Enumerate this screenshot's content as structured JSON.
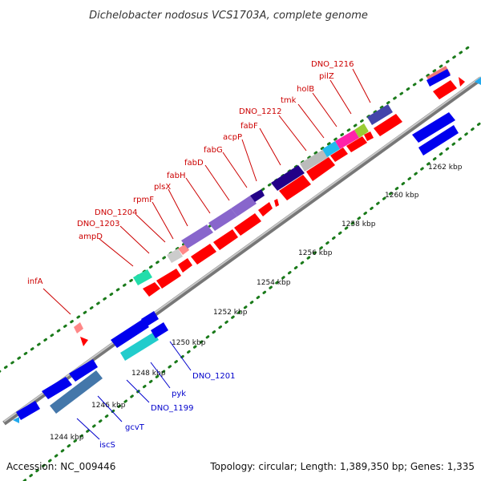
{
  "header": {
    "title": "Dichelobacter nodosus VCS1703A, complete genome"
  },
  "footer": {
    "accession": "Accession: NC_009446",
    "topology": "Topology: circular; Length: 1,389,350 bp; Genes: 1,335"
  },
  "colors": {
    "backbone": "#8c8c8c",
    "forward_label": "#cc0000",
    "reverse_label": "#0000cc",
    "cds_forward": "#ff0000",
    "cds_reverse": "#0000ee",
    "ruler_dots": "#1a7a1a"
  },
  "scale_labels": [
    {
      "text": "1244 kbp"
    },
    {
      "text": "1246 kbp"
    },
    {
      "text": "1248 kbp"
    },
    {
      "text": "1250 kbp"
    },
    {
      "text": "1252 kbp"
    },
    {
      "text": "1254 kbp"
    },
    {
      "text": "1256 kbp"
    },
    {
      "text": "1258 kbp"
    },
    {
      "text": "1260 kbp"
    },
    {
      "text": "1262 kbp"
    }
  ],
  "gene_labels": [
    {
      "text": "DNO_1216",
      "strand": "forward"
    },
    {
      "text": "pilZ",
      "strand": "forward"
    },
    {
      "text": "holB",
      "strand": "forward"
    },
    {
      "text": "tmk",
      "strand": "forward"
    },
    {
      "text": "DNO_1212",
      "strand": "forward"
    },
    {
      "text": "fabF",
      "strand": "forward"
    },
    {
      "text": "acpP",
      "strand": "forward"
    },
    {
      "text": "fabG",
      "strand": "forward"
    },
    {
      "text": "fabD",
      "strand": "forward"
    },
    {
      "text": "fabH",
      "strand": "forward"
    },
    {
      "text": "plsX",
      "strand": "forward"
    },
    {
      "text": "rpmF",
      "strand": "forward"
    },
    {
      "text": "DNO_1204",
      "strand": "forward"
    },
    {
      "text": "DNO_1203",
      "strand": "forward"
    },
    {
      "text": "ampD",
      "strand": "forward"
    },
    {
      "text": "infA",
      "strand": "forward"
    },
    {
      "text": "DNO_1201",
      "strand": "reverse"
    },
    {
      "text": "pyk",
      "strand": "reverse"
    },
    {
      "text": "DNO_1199",
      "strand": "reverse"
    },
    {
      "text": "gcvT",
      "strand": "reverse"
    },
    {
      "text": "iscS",
      "strand": "reverse"
    }
  ]
}
